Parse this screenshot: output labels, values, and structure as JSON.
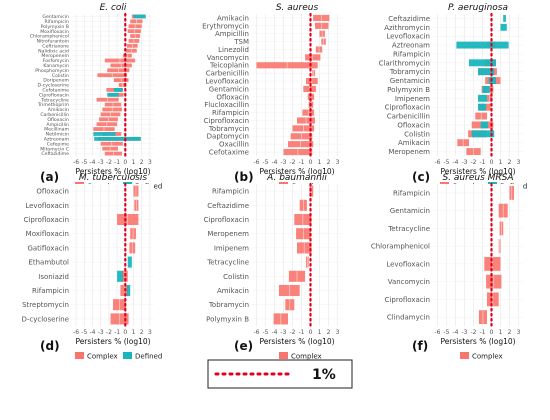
{
  "figure": {
    "ref_label": "1%",
    "axis_label": "Persisters % (log10)",
    "colors": {
      "complex": "#f8766d",
      "defined": "#19b5bf",
      "ref": "#e0001b",
      "grid": "#e6e6e6",
      "panel": "#ffffff",
      "axis_text": "#555555"
    }
  },
  "chart_data": [
    {
      "type": "bar",
      "letter": "(a)",
      "title": "E. coli",
      "xlim": [
        -6.5,
        3.5
      ],
      "xticks": [
        -6,
        -5,
        -4,
        -3,
        -2,
        -1,
        0,
        1,
        2,
        3
      ],
      "xlabel": "Persisters % (log10)",
      "legend": [
        "Complex",
        "Defined"
      ],
      "categories": [
        "Gentamicin",
        "Rifampicin",
        "Polymyxin B",
        "Moxifloxacin",
        "Chloramphenicol",
        "Nitrofurantoin",
        "Ceftriaxone",
        "Nalidixic acid",
        "Meropenem",
        "Fosfomycin",
        "Kanamycin",
        "Phosphomycin",
        "Colistin",
        "Doripenem",
        "D-cycloserine",
        "Cefotaxime",
        "Ciprofloxacin",
        "Tetracycline",
        "Trimethoprim",
        "Amikacin",
        "Carbenicillin",
        "Ofloxacin",
        "Ampicillin",
        "Mecillinam",
        "Netilmicin",
        "Aztreonam",
        "Cefepime",
        "Mitomycin C",
        "Ceftazidime"
      ],
      "complex": [
        [
          0.8,
          2.3
        ],
        [
          0.6,
          2.1
        ],
        [
          0.4,
          2.0
        ],
        [
          0.3,
          1.9
        ],
        [
          0.6,
          1.8
        ],
        [
          0.4,
          1.7
        ],
        [
          0.2,
          1.5
        ],
        [
          0.1,
          1.4
        ],
        [
          -0.3,
          0.8
        ],
        [
          -2.5,
          1.2
        ],
        [
          -1.8,
          0.8
        ],
        [
          -2.2,
          0.5
        ],
        [
          -3.4,
          0.2
        ],
        [
          -1.4,
          0.4
        ],
        [
          -0.8,
          0.1
        ],
        [
          -2.3,
          -0.3
        ],
        [
          -2.0,
          -0.2
        ],
        [
          -3.5,
          -0.8
        ],
        [
          -2.5,
          -0.5
        ],
        [
          -2.8,
          -0.4
        ],
        [
          -3.0,
          -0.6
        ],
        [
          -3.2,
          -0.9
        ],
        [
          -3.5,
          -1.0
        ],
        [
          -3.9,
          -1.3
        ],
        [
          -2.8,
          -0.5
        ],
        [
          -3.4,
          1.8
        ],
        [
          -3.0,
          -0.3
        ],
        [
          -2.8,
          -0.9
        ],
        [
          -2.5,
          -0.4
        ]
      ],
      "defined": [
        [
          1.0,
          2.5
        ],
        [
          0,
          0
        ],
        [
          0,
          0
        ],
        [
          0,
          0
        ],
        [
          0,
          0
        ],
        [
          0,
          0
        ],
        [
          0,
          0
        ],
        [
          0,
          0
        ],
        [
          0,
          0
        ],
        [
          0,
          0
        ],
        [
          0,
          0
        ],
        [
          0,
          0
        ],
        [
          0,
          0
        ],
        [
          0,
          0
        ],
        [
          0,
          0
        ],
        [
          -1.4,
          -0.3
        ],
        [
          -2.2,
          -0.8
        ],
        [
          0,
          0
        ],
        [
          0,
          0
        ],
        [
          0,
          0
        ],
        [
          0,
          0
        ],
        [
          0,
          0
        ],
        [
          0,
          0
        ],
        [
          0,
          0
        ],
        [
          -3.9,
          -1.2
        ],
        [
          -3.8,
          1.9
        ],
        [
          0,
          0
        ],
        [
          0,
          0
        ],
        [
          0,
          0
        ]
      ]
    },
    {
      "type": "bar",
      "letter": "(b)",
      "title": "S. aureus",
      "xlim": [
        -6.5,
        3.5
      ],
      "xticks": [
        -6,
        -5,
        -4,
        -3,
        -2,
        -1,
        0,
        1,
        2,
        3
      ],
      "xlabel": "Persisters % (log10)",
      "legend": [
        "Complex"
      ],
      "categories": [
        "Amikacin",
        "Erythromycin",
        "Ampicillin",
        "TSM",
        "Linezolid",
        "Vancomycin",
        "Teicoplanin",
        "Carbenicillin",
        "Levofloxacin",
        "Gentamicin",
        "Ofloxacin",
        "Flucloxacillin",
        "Rifampicin",
        "Ciprofloxacin",
        "Tobramycin",
        "Daptomycin",
        "Oxacillin",
        "Cefotaxime"
      ],
      "complex": [
        [
          0.3,
          2.1
        ],
        [
          0.5,
          2.0
        ],
        [
          1.0,
          1.6
        ],
        [
          1.2,
          1.7
        ],
        [
          0.6,
          1.3
        ],
        [
          -0.6,
          1.1
        ],
        [
          -6.0,
          0.8
        ],
        [
          0.2,
          0.5
        ],
        [
          -0.5,
          0.8
        ],
        [
          -0.8,
          0.6
        ],
        [
          -0.3,
          0.4
        ],
        [
          -0.2,
          0.3
        ],
        [
          -0.9,
          0.4
        ],
        [
          -1.5,
          0.5
        ],
        [
          -2.0,
          0.4
        ],
        [
          -2.2,
          0.2
        ],
        [
          -2.5,
          0.3
        ],
        [
          -3.0,
          0.2
        ]
      ],
      "defined": []
    },
    {
      "type": "bar",
      "letter": "(c)",
      "title": "P. aeruginosa",
      "xlim": [
        -6.5,
        3.5
      ],
      "xticks": [
        -6,
        -5,
        -4,
        -3,
        -2,
        -1,
        0,
        1,
        2,
        3
      ],
      "xlabel": "Persisters % (log10)",
      "legend": [
        "Complex",
        "Defined"
      ],
      "categories": [
        "Ceftazidime",
        "Azithromycin",
        "Levofloxacin",
        "Aztreonam",
        "Rifampicin",
        "Clarithromycin",
        "Tobramycin",
        "Gentamicin",
        "Polymyxin B",
        "Imipenem",
        "Ciprofloxacin",
        "Carbenicillin",
        "Ofloxacin",
        "Colistin",
        "Amikacin",
        "Meropenem"
      ],
      "complex": [
        [
          0,
          0
        ],
        [
          0,
          0
        ],
        [
          0,
          0
        ],
        [
          -0.5,
          0.5
        ],
        [
          0,
          0
        ],
        [
          -0.8,
          0.4
        ],
        [
          -1.5,
          0.6
        ],
        [
          -0.7,
          1.0
        ],
        [
          -1.1,
          0.2
        ],
        [
          -0.5,
          0.1
        ],
        [
          -1.4,
          -0.1
        ],
        [
          -1.8,
          -0.5
        ],
        [
          -2.2,
          0.2
        ],
        [
          -2.6,
          -0.6
        ],
        [
          -3.8,
          -2.5
        ],
        [
          -2.8,
          -1.2
        ]
      ],
      "defined": [
        [
          1.3,
          1.6
        ],
        [
          1.0,
          1.7
        ],
        [
          0,
          0
        ],
        [
          -3.9,
          1.9
        ],
        [
          0,
          0
        ],
        [
          -2.5,
          0.5
        ],
        [
          -1.5,
          0.3
        ],
        [
          -0.3,
          0.5
        ],
        [
          -1.0,
          -0.2
        ],
        [
          -1.5,
          -0.5
        ],
        [
          -1.5,
          -0.6
        ],
        [
          0,
          0
        ],
        [
          -1.2,
          -0.4
        ],
        [
          -2.2,
          0.3
        ],
        [
          0,
          0
        ],
        [
          0,
          0
        ]
      ]
    },
    {
      "type": "bar",
      "letter": "(d)",
      "title": "M. tuberculosis",
      "xlim": [
        -6.5,
        3.5
      ],
      "xticks": [
        -6,
        -5,
        -4,
        -3,
        -2,
        -1,
        0,
        1,
        2,
        3
      ],
      "xlabel": "Persisters % (log10)",
      "legend": [
        "Complex",
        "Defined"
      ],
      "categories": [
        "Ofloxacin",
        "Levofloxacin",
        "Ciprofloxacin",
        "Moxifloxacin",
        "Gatifloxacin",
        "Ethambutol",
        "Isoniazid",
        "Rifampicin",
        "Streptomycin",
        "D-cycloserine"
      ],
      "complex": [
        [
          1.0,
          1.6
        ],
        [
          1.1,
          1.6
        ],
        [
          -1.0,
          1.6
        ],
        [
          0.6,
          1.3
        ],
        [
          0.5,
          1.2
        ],
        [
          0,
          0
        ],
        [
          -0.4,
          0.3
        ],
        [
          -0.6,
          0.4
        ],
        [
          -1.5,
          0.1
        ],
        [
          -1.8,
          0.4
        ]
      ],
      "defined": [
        [
          0,
          0
        ],
        [
          0,
          0
        ],
        [
          0,
          0
        ],
        [
          0,
          0
        ],
        [
          0,
          0
        ],
        [
          0.3,
          0.8
        ],
        [
          -1.0,
          -0.3
        ],
        [
          0.2,
          0.6
        ],
        [
          0,
          0
        ],
        [
          0,
          0
        ]
      ]
    },
    {
      "type": "bar",
      "letter": "(e)",
      "title": "A. baumannii",
      "xlim": [
        -6.5,
        3.5
      ],
      "xticks": [
        -6,
        -5,
        -4,
        -3,
        -2,
        -1,
        0,
        1,
        2,
        3
      ],
      "xlabel": "Persisters % (log10)",
      "legend": [
        "Complex"
      ],
      "categories": [
        "Rifampicin",
        "Ceftazidime",
        "Ciprofloxacin",
        "Meropenem",
        "Imipenem",
        "Tetracycline",
        "Colistin",
        "Amikacin",
        "Tobramycin",
        "Polymyxin B"
      ],
      "complex": [
        [
          -0.1,
          0.3
        ],
        [
          -1.2,
          -0.4
        ],
        [
          -1.8,
          0.1
        ],
        [
          -1.6,
          0.0
        ],
        [
          -1.5,
          0.1
        ],
        [
          -0.5,
          -0.2
        ],
        [
          -2.4,
          -0.6
        ],
        [
          -3.5,
          -1.2
        ],
        [
          -2.8,
          -1.8
        ],
        [
          -4.1,
          -2.5
        ]
      ],
      "defined": []
    },
    {
      "type": "bar",
      "letter": "(f)",
      "title": "S. aureus MRSA",
      "xlim": [
        -6.5,
        3.5
      ],
      "xticks": [
        -6,
        -5,
        -4,
        -3,
        -2,
        -1,
        0,
        1,
        2,
        3
      ],
      "xlabel": "Persisters % (log10)",
      "legend": [
        "Complex"
      ],
      "categories": [
        "Rifampicin",
        "Gentamicin",
        "Tetracycline",
        "Chloramphenicol",
        "Levofloxacin",
        "Vancomycin",
        "Ciprofloxacin",
        "Clindamycin"
      ],
      "complex": [
        [
          2.0,
          2.5
        ],
        [
          0.8,
          1.8
        ],
        [
          0.9,
          1.3
        ],
        [
          0.8,
          1.0
        ],
        [
          -0.8,
          1.0
        ],
        [
          -0.6,
          1.1
        ],
        [
          -0.5,
          0.8
        ],
        [
          -1.4,
          -0.5
        ]
      ],
      "defined": []
    }
  ]
}
